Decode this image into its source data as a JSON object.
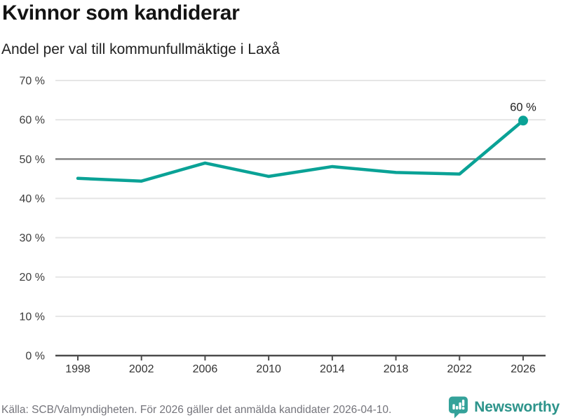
{
  "header": {
    "title": "Kvinnor som kandiderar",
    "subtitle": "Andel per val till kommunfullmäktige i Laxå"
  },
  "chart_data": {
    "type": "line",
    "title": "Kvinnor som kandiderar",
    "subtitle": "Andel per val till kommunfullmäktige i Laxå",
    "x": [
      1998,
      2002,
      2006,
      2010,
      2014,
      2018,
      2022,
      2026
    ],
    "xtick_labels": [
      "1998",
      "2002",
      "2006",
      "2010",
      "2014",
      "2018",
      "2022",
      "2026"
    ],
    "values": [
      45.1,
      44.4,
      49.0,
      45.6,
      48.1,
      46.6,
      46.2,
      59.8
    ],
    "yticks": [
      0,
      10,
      20,
      30,
      40,
      50,
      60,
      70
    ],
    "ytick_labels": [
      "0 %",
      "10 %",
      "20 %",
      "30 %",
      "40 %",
      "50 %",
      "60 %",
      "70 %"
    ],
    "ylim": [
      0,
      70
    ],
    "grid": true,
    "emphasized_gridline": 50,
    "last_point_label": "60 %",
    "legend": "none",
    "colors": {
      "line": "#0aa296",
      "marker": "#0aa296",
      "grid_light": "#e3e3e3",
      "grid_mid": "#7a7a7a",
      "axis": "#4b4b4b",
      "ytick_text": "#3d3d3d",
      "xtick_text": "#333333",
      "point_label_text": "#1f1f1f"
    }
  },
  "footer": {
    "source": "Källa: SCB/Valmyndigheten. För 2026 gäller det anmälda kandidater 2026-04-10.",
    "brand_name": "Newsworthy",
    "brand_color": "#2d948b",
    "brand_icon": "bar-chart-speech-bubble",
    "brand_icon_color": "#34a29a"
  }
}
